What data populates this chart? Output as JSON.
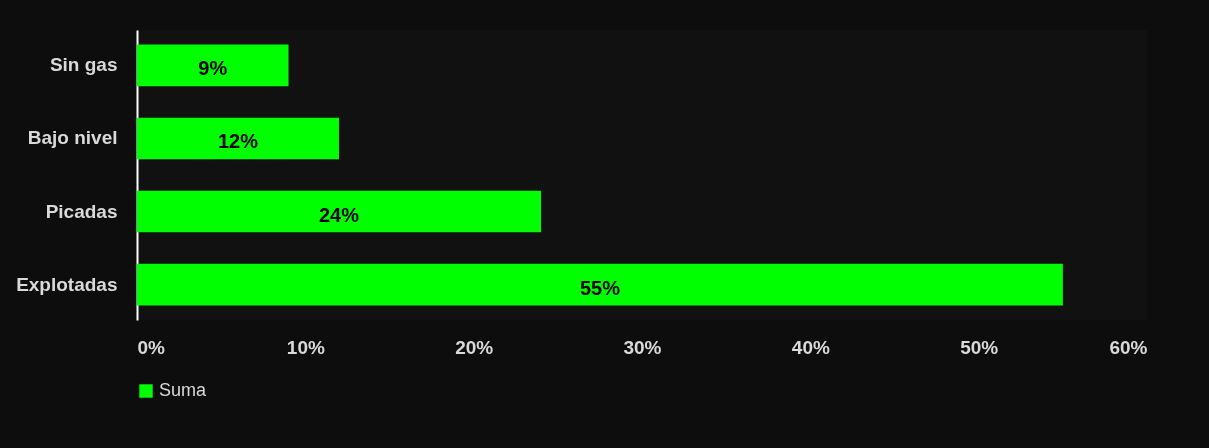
{
  "chart_data": {
    "type": "bar",
    "orientation": "horizontal",
    "categories": [
      "Sin gas",
      "Bajo nivel",
      "Picadas",
      "Explotadas"
    ],
    "series": [
      {
        "name": "Suma",
        "color": "#00ff00",
        "values": [
          9,
          12,
          24,
          55
        ],
        "value_labels": [
          "9%",
          "12%",
          "24%",
          "55%"
        ]
      }
    ],
    "xlim": [
      0,
      60
    ],
    "xticks": [
      {
        "value": 0,
        "label": "0%"
      },
      {
        "value": 10,
        "label": "10%"
      },
      {
        "value": 20,
        "label": "20%"
      },
      {
        "value": 30,
        "label": "30%"
      },
      {
        "value": 40,
        "label": "40%"
      },
      {
        "value": 50,
        "label": "50%"
      },
      {
        "value": 60,
        "label": "60%"
      }
    ],
    "legend": "bottom",
    "grid": false
  }
}
